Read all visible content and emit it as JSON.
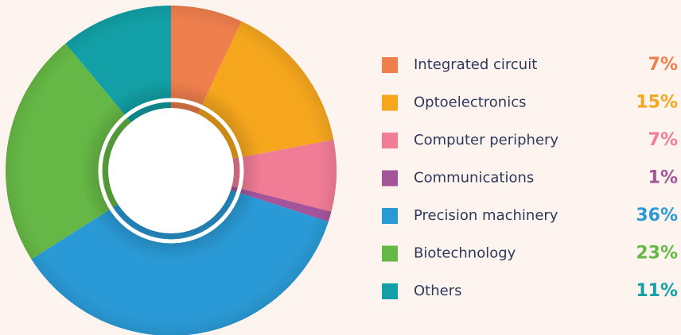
{
  "chart_data": {
    "type": "donut",
    "categories": [
      "Integrated circuit",
      "Optoelectronics",
      "Computer periphery",
      "Communications",
      "Precision machinery",
      "Biotechnology",
      "Others"
    ],
    "values": [
      7,
      15,
      7,
      1,
      36,
      23,
      11
    ],
    "value_labels": [
      "7%",
      "15%",
      "7%",
      "1%",
      "36%",
      "23%",
      "11%"
    ],
    "colors": [
      "#f07f4e",
      "#f5a61d",
      "#f07c95",
      "#a4559a",
      "#2a9ad6",
      "#66b846",
      "#12a0a6"
    ]
  }
}
